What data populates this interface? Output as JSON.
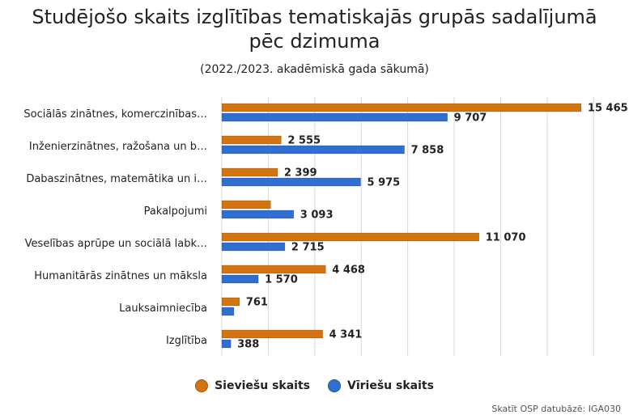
{
  "chart_data": {
    "type": "bar",
    "orientation": "horizontal",
    "title_lines": [
      "Studējošo skaits izglītības tematiskajās grupās sadalījumā",
      "pēc dzimuma"
    ],
    "subtitle": "(2022./2023. akadēmiskā gada sākumā)",
    "categories": [
      "Sociālās zinātnes, komerczinības…",
      "Inženierzinātnes, ražošana un b…",
      "Dabaszinātnes, matemātika un i…",
      "Pakalpojumi",
      "Veselības aprūpe un sociālā labk…",
      "Humanitārās zinātnes un māksla",
      "Lauksaimniecība",
      "Izglītība"
    ],
    "series": [
      {
        "name": "Sieviešu skaits",
        "color": "#d4740f",
        "values": [
          15465,
          2555,
          2399,
          2100,
          11070,
          4468,
          761,
          4341
        ],
        "labels": [
          "15 465",
          "2 555",
          "2 399",
          "",
          "11 070",
          "4 468",
          "761",
          "4 341"
        ]
      },
      {
        "name": "Vīriešu skaits",
        "color": "#2e6fd1",
        "values": [
          9707,
          7858,
          5975,
          3093,
          2715,
          1570,
          520,
          388
        ],
        "labels": [
          "9 707",
          "7 858",
          "5 975",
          "3 093",
          "2 715",
          "1 570",
          "",
          "388"
        ]
      }
    ],
    "xlim": [
      0,
      17000
    ],
    "grid": true,
    "legend_position": "bottom"
  },
  "source": "Skatīt OSP datubāzē: IGA030"
}
